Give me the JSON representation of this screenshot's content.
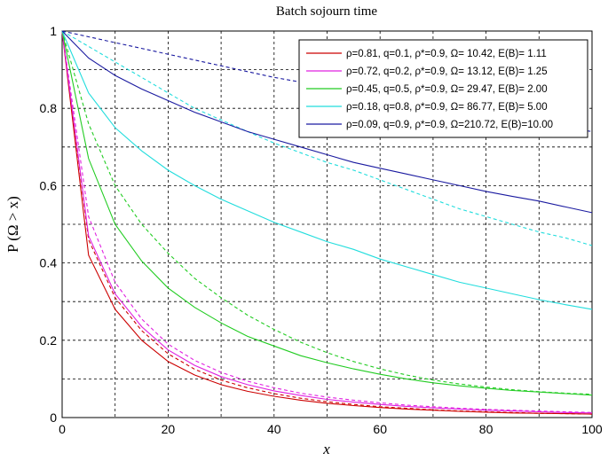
{
  "chart_data": {
    "type": "line",
    "title": "Batch sojourn time",
    "xlabel": "x",
    "ylabel": "P (Ω > x)",
    "xlim": [
      0,
      100
    ],
    "ylim": [
      0,
      1
    ],
    "xticks": [
      "0",
      "20",
      "40",
      "60",
      "80",
      "100"
    ],
    "yticks": [
      "0",
      "0.2",
      "0.4",
      "0.6",
      "0.8",
      "1"
    ],
    "grid": true,
    "legend_position": "top-right",
    "x": [
      0,
      5,
      10,
      15,
      20,
      25,
      30,
      35,
      40,
      45,
      50,
      55,
      60,
      65,
      70,
      75,
      80,
      85,
      90,
      95,
      100
    ],
    "series": [
      {
        "name": "ρ=0.81, q=0.1, ρ*=0.9, Ω= 10.42, E(B)= 1.11",
        "color": "#cc0000",
        "style": "solid",
        "values": [
          1.0,
          0.42,
          0.28,
          0.2,
          0.145,
          0.11,
          0.085,
          0.068,
          0.055,
          0.045,
          0.037,
          0.031,
          0.026,
          0.022,
          0.019,
          0.016,
          0.014,
          0.012,
          0.011,
          0.01,
          0.009
        ]
      },
      {
        "name": "ρ=0.81, q=0.1, ρ*=0.9, Ω= 10.42, E(B)= 1.11",
        "color": "#cc0000",
        "style": "dashed",
        "values": [
          1.0,
          0.46,
          0.31,
          0.225,
          0.165,
          0.125,
          0.097,
          0.077,
          0.062,
          0.05,
          0.041,
          0.034,
          0.028,
          0.024,
          0.02,
          0.017,
          0.015,
          0.013,
          0.011,
          0.01,
          0.009
        ]
      },
      {
        "name": "ρ=0.72, q=0.2, ρ*=0.9, Ω= 13.12, E(B)= 1.25",
        "color": "#e020e0",
        "style": "solid",
        "values": [
          1.0,
          0.47,
          0.32,
          0.235,
          0.175,
          0.135,
          0.106,
          0.085,
          0.069,
          0.057,
          0.047,
          0.04,
          0.034,
          0.029,
          0.025,
          0.022,
          0.019,
          0.017,
          0.015,
          0.013,
          0.012
        ]
      },
      {
        "name": "ρ=0.72, q=0.2, ρ*=0.9, Ω= 13.12, E(B)= 1.25",
        "color": "#e020e0",
        "style": "dashed",
        "values": [
          1.0,
          0.52,
          0.35,
          0.255,
          0.19,
          0.148,
          0.117,
          0.094,
          0.077,
          0.063,
          0.053,
          0.045,
          0.038,
          0.032,
          0.028,
          0.024,
          0.021,
          0.019,
          0.017,
          0.015,
          0.013
        ]
      },
      {
        "name": "ρ=0.45, q=0.5, ρ*=0.9, Ω= 29.47, E(B)= 2.00",
        "color": "#22cc22",
        "style": "solid",
        "values": [
          1.0,
          0.67,
          0.5,
          0.405,
          0.335,
          0.285,
          0.245,
          0.21,
          0.185,
          0.16,
          0.142,
          0.126,
          0.112,
          0.1,
          0.09,
          0.082,
          0.076,
          0.07,
          0.066,
          0.062,
          0.058
        ]
      },
      {
        "name": "ρ=0.45, q=0.5, ρ*=0.9, Ω= 29.47, E(B)= 2.00",
        "color": "#22cc22",
        "style": "dashed",
        "values": [
          1.0,
          0.76,
          0.6,
          0.5,
          0.425,
          0.36,
          0.31,
          0.265,
          0.228,
          0.195,
          0.168,
          0.145,
          0.126,
          0.11,
          0.097,
          0.087,
          0.079,
          0.072,
          0.067,
          0.063,
          0.06
        ]
      },
      {
        "name": "ρ=0.18, q=0.8, ρ*=0.9, Ω= 86.77, E(B)= 5.00",
        "color": "#22dddd",
        "style": "solid",
        "values": [
          1.0,
          0.84,
          0.75,
          0.69,
          0.64,
          0.6,
          0.565,
          0.535,
          0.505,
          0.48,
          0.455,
          0.435,
          0.41,
          0.39,
          0.37,
          0.35,
          0.335,
          0.32,
          0.305,
          0.292,
          0.28
        ]
      },
      {
        "name": "ρ=0.18, q=0.8, ρ*=0.9, Ω= 86.77, E(B)= 5.00",
        "color": "#22dddd",
        "style": "dashed",
        "values": [
          1.0,
          0.96,
          0.92,
          0.88,
          0.84,
          0.8,
          0.77,
          0.74,
          0.71,
          0.685,
          0.66,
          0.64,
          0.615,
          0.59,
          0.565,
          0.54,
          0.52,
          0.5,
          0.48,
          0.465,
          0.445
        ]
      },
      {
        "name": "ρ=0.09, q=0.9, ρ*=0.9, Ω=210.72, E(B)=10.00",
        "color": "#1a1aa0",
        "style": "solid",
        "values": [
          1.0,
          0.93,
          0.885,
          0.85,
          0.82,
          0.79,
          0.765,
          0.74,
          0.72,
          0.7,
          0.68,
          0.66,
          0.645,
          0.63,
          0.615,
          0.6,
          0.585,
          0.572,
          0.56,
          0.545,
          0.53
        ]
      },
      {
        "name": "ρ=0.09, q=0.9, ρ*=0.9, Ω=210.72, E(B)=10.00",
        "color": "#1a1aa0",
        "style": "dashed",
        "values": [
          1.0,
          0.985,
          0.97,
          0.955,
          0.94,
          0.925,
          0.91,
          0.895,
          0.88,
          0.868,
          0.855,
          0.843,
          0.83,
          0.818,
          0.806,
          0.795,
          0.783,
          0.772,
          0.76,
          0.75,
          0.74
        ]
      }
    ]
  }
}
